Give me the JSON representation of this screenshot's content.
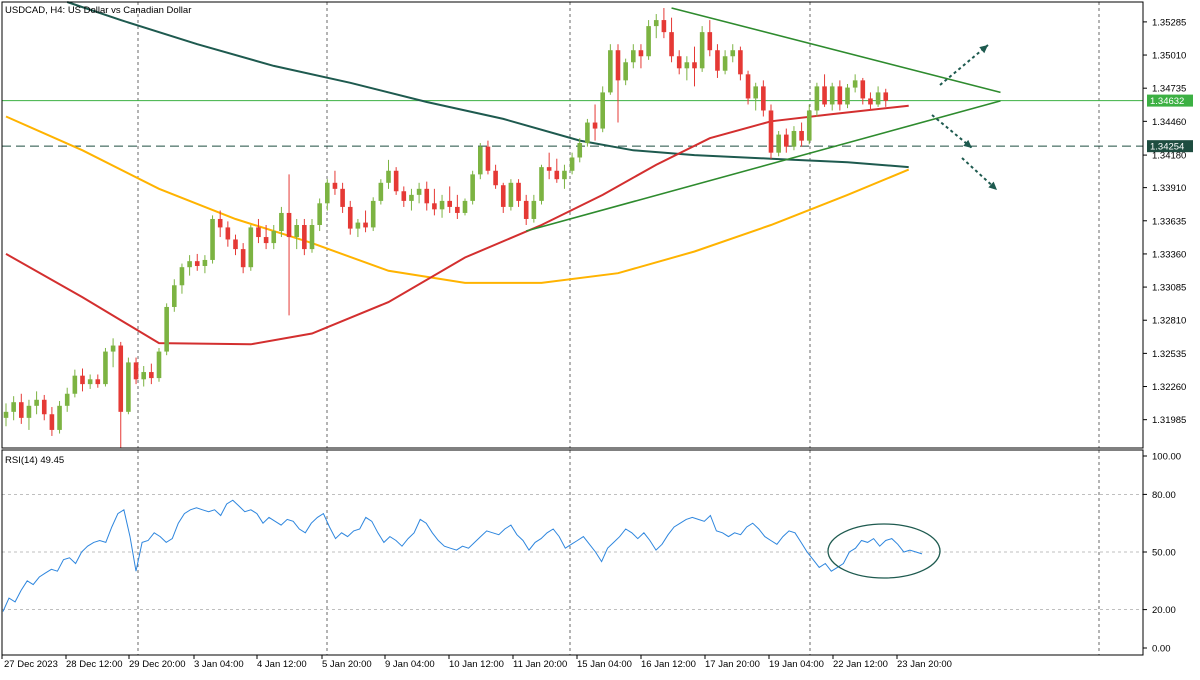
{
  "header": {
    "title": "USDCAD, H4:  US Dollar vs Canadian Dollar"
  },
  "colors": {
    "bull": "#7cb342",
    "bear": "#e53935",
    "ema_fast": "#d32f2f",
    "ema_mid": "#ffb300",
    "ema_slow": "#1e5a4f",
    "trend": "#2e8b2e",
    "price_line": "#3cb043",
    "level_line": "#1e4d40",
    "rsi": "#2e86de",
    "arrow": "#1e5a4f"
  },
  "chart_data": {
    "type": "candlestick",
    "symbol": "USDCAD",
    "timeframe": "H4",
    "ylim": [
      1.3175,
      1.3545
    ],
    "y_ticks": [
      "1.35285",
      "1.35010",
      "1.34735",
      "1.34460",
      "1.34180",
      "1.33910",
      "1.33635",
      "1.33360",
      "1.33085",
      "1.32810",
      "1.32535",
      "1.32260",
      "1.31985"
    ],
    "x_ticks": [
      "27 Dec 2023",
      "28 Dec 12:00",
      "29 Dec 20:00",
      "3 Jan 04:00",
      "4 Jan 12:00",
      "5 Jan 20:00",
      "9 Jan 04:00",
      "10 Jan 12:00",
      "11 Jan 20:00",
      "15 Jan 04:00",
      "16 Jan 12:00",
      "17 Jan 20:00",
      "19 Jan 04:00",
      "22 Jan 12:00",
      "23 Jan 20:00"
    ],
    "current_price": {
      "label": "1.34632",
      "value": 1.34632
    },
    "level": {
      "label": "1.34254",
      "value": 1.34254
    },
    "candles": [
      [
        1.32,
        1.3212,
        1.3193,
        1.3205
      ],
      [
        1.3205,
        1.3218,
        1.3198,
        1.3213
      ],
      [
        1.3213,
        1.322,
        1.3195,
        1.32
      ],
      [
        1.32,
        1.3215,
        1.319,
        1.321
      ],
      [
        1.321,
        1.3222,
        1.3203,
        1.3215
      ],
      [
        1.3215,
        1.3219,
        1.3198,
        1.3203
      ],
      [
        1.3203,
        1.3209,
        1.3185,
        1.319
      ],
      [
        1.319,
        1.3214,
        1.3187,
        1.321
      ],
      [
        1.321,
        1.3225,
        1.3205,
        1.322
      ],
      [
        1.322,
        1.324,
        1.3217,
        1.3235
      ],
      [
        1.3235,
        1.3241,
        1.3222,
        1.3228
      ],
      [
        1.3228,
        1.3236,
        1.3224,
        1.3232
      ],
      [
        1.3232,
        1.3236,
        1.3225,
        1.3228
      ],
      [
        1.3228,
        1.3258,
        1.3226,
        1.3255
      ],
      [
        1.3255,
        1.3266,
        1.3242,
        1.326
      ],
      [
        1.326,
        1.3263,
        1.3175,
        1.3205
      ],
      [
        1.3205,
        1.325,
        1.3203,
        1.3246
      ],
      [
        1.3246,
        1.325,
        1.3228,
        1.3232
      ],
      [
        1.3232,
        1.3243,
        1.3226,
        1.3238
      ],
      [
        1.3238,
        1.3245,
        1.3228,
        1.3233
      ],
      [
        1.3233,
        1.3258,
        1.323,
        1.3255
      ],
      [
        1.3255,
        1.3295,
        1.3252,
        1.3292
      ],
      [
        1.3292,
        1.3315,
        1.3288,
        1.331
      ],
      [
        1.331,
        1.3328,
        1.3303,
        1.3325
      ],
      [
        1.3325,
        1.3335,
        1.3318,
        1.333
      ],
      [
        1.333,
        1.3336,
        1.3322,
        1.3326
      ],
      [
        1.3326,
        1.3335,
        1.332,
        1.3331
      ],
      [
        1.3331,
        1.3368,
        1.3328,
        1.3365
      ],
      [
        1.3365,
        1.3372,
        1.335,
        1.3358
      ],
      [
        1.3358,
        1.3363,
        1.3342,
        1.3348
      ],
      [
        1.3348,
        1.3352,
        1.3335,
        1.334
      ],
      [
        1.334,
        1.3345,
        1.332,
        1.3325
      ],
      [
        1.3325,
        1.336,
        1.3322,
        1.3358
      ],
      [
        1.3358,
        1.3365,
        1.3345,
        1.335
      ],
      [
        1.335,
        1.336,
        1.334,
        1.3345
      ],
      [
        1.3345,
        1.336,
        1.334,
        1.3355
      ],
      [
        1.3355,
        1.3375,
        1.335,
        1.337
      ],
      [
        1.337,
        1.3402,
        1.3285,
        1.335
      ],
      [
        1.335,
        1.3365,
        1.334,
        1.336
      ],
      [
        1.336,
        1.3365,
        1.3335,
        1.334
      ],
      [
        1.334,
        1.3365,
        1.3337,
        1.336
      ],
      [
        1.336,
        1.3382,
        1.3355,
        1.3378
      ],
      [
        1.3378,
        1.3398,
        1.3372,
        1.3395
      ],
      [
        1.3395,
        1.3405,
        1.3385,
        1.339
      ],
      [
        1.339,
        1.3395,
        1.337,
        1.3375
      ],
      [
        1.3375,
        1.338,
        1.3352,
        1.3357
      ],
      [
        1.3357,
        1.3365,
        1.335,
        1.3362
      ],
      [
        1.3362,
        1.3372,
        1.3354,
        1.3358
      ],
      [
        1.3358,
        1.3383,
        1.3355,
        1.338
      ],
      [
        1.338,
        1.3398,
        1.3377,
        1.3395
      ],
      [
        1.3395,
        1.3414,
        1.339,
        1.3405
      ],
      [
        1.3405,
        1.3408,
        1.3385,
        1.3388
      ],
      [
        1.3388,
        1.3392,
        1.3375,
        1.338
      ],
      [
        1.338,
        1.339,
        1.3372,
        1.3385
      ],
      [
        1.3385,
        1.3395,
        1.3378,
        1.339
      ],
      [
        1.339,
        1.3396,
        1.3372,
        1.3378
      ],
      [
        1.3378,
        1.339,
        1.3368,
        1.3373
      ],
      [
        1.3373,
        1.3385,
        1.3366,
        1.338
      ],
      [
        1.338,
        1.3392,
        1.337,
        1.3375
      ],
      [
        1.3375,
        1.3385,
        1.3365,
        1.337
      ],
      [
        1.337,
        1.3382,
        1.3368,
        1.338
      ],
      [
        1.338,
        1.3405,
        1.3377,
        1.3402
      ],
      [
        1.3402,
        1.3428,
        1.3398,
        1.3425
      ],
      [
        1.3425,
        1.343,
        1.3402,
        1.3405
      ],
      [
        1.3405,
        1.341,
        1.339,
        1.3393
      ],
      [
        1.3393,
        1.3395,
        1.337,
        1.3375
      ],
      [
        1.3375,
        1.3398,
        1.3372,
        1.3395
      ],
      [
        1.3395,
        1.3398,
        1.3375,
        1.338
      ],
      [
        1.338,
        1.3385,
        1.336,
        1.3365
      ],
      [
        1.3365,
        1.3385,
        1.3362,
        1.338
      ],
      [
        1.338,
        1.341,
        1.3377,
        1.3408
      ],
      [
        1.3408,
        1.342,
        1.3398,
        1.3405
      ],
      [
        1.3405,
        1.3415,
        1.3395,
        1.3398
      ],
      [
        1.3398,
        1.341,
        1.339,
        1.3405
      ],
      [
        1.3405,
        1.342,
        1.3402,
        1.3416
      ],
      [
        1.3416,
        1.3432,
        1.3412,
        1.3428
      ],
      [
        1.3428,
        1.3448,
        1.3425,
        1.3445
      ],
      [
        1.3445,
        1.346,
        1.343,
        1.344
      ],
      [
        1.344,
        1.3475,
        1.3437,
        1.347
      ],
      [
        1.347,
        1.351,
        1.3468,
        1.3505
      ],
      [
        1.3505,
        1.351,
        1.3445,
        1.348
      ],
      [
        1.348,
        1.3498,
        1.3476,
        1.3495
      ],
      [
        1.3495,
        1.351,
        1.349,
        1.3505
      ],
      [
        1.3505,
        1.351,
        1.349,
        1.35
      ],
      [
        1.35,
        1.353,
        1.3497,
        1.3525
      ],
      [
        1.3525,
        1.3535,
        1.3515,
        1.353
      ],
      [
        1.353,
        1.354,
        1.3515,
        1.352
      ],
      [
        1.352,
        1.3532,
        1.3495,
        1.35
      ],
      [
        1.35,
        1.3505,
        1.3485,
        1.349
      ],
      [
        1.349,
        1.35,
        1.348,
        1.3495
      ],
      [
        1.3495,
        1.3508,
        1.3475,
        1.349
      ],
      [
        1.349,
        1.3525,
        1.3487,
        1.352
      ],
      [
        1.352,
        1.353,
        1.35,
        1.3505
      ],
      [
        1.3505,
        1.351,
        1.3482,
        1.3488
      ],
      [
        1.3488,
        1.3505,
        1.3485,
        1.35
      ],
      [
        1.35,
        1.351,
        1.3495,
        1.3505
      ],
      [
        1.3505,
        1.3508,
        1.348,
        1.3485
      ],
      [
        1.3485,
        1.3488,
        1.346,
        1.3465
      ],
      [
        1.3465,
        1.3478,
        1.3455,
        1.3475
      ],
      [
        1.3475,
        1.348,
        1.345,
        1.3455
      ],
      [
        1.3455,
        1.346,
        1.3415,
        1.342
      ],
      [
        1.342,
        1.3438,
        1.3417,
        1.3435
      ],
      [
        1.3435,
        1.344,
        1.342,
        1.3425
      ],
      [
        1.3425,
        1.3442,
        1.3422,
        1.3438
      ],
      [
        1.3438,
        1.3445,
        1.3425,
        1.343
      ],
      [
        1.343,
        1.346,
        1.3427,
        1.3455
      ],
      [
        1.3455,
        1.3478,
        1.345,
        1.3475
      ],
      [
        1.3475,
        1.3485,
        1.3458,
        1.346
      ],
      [
        1.346,
        1.3478,
        1.3455,
        1.3475
      ],
      [
        1.3475,
        1.348,
        1.3455,
        1.346
      ],
      [
        1.346,
        1.3477,
        1.3457,
        1.3474
      ],
      [
        1.3474,
        1.3485,
        1.347,
        1.348
      ],
      [
        1.348,
        1.3482,
        1.346,
        1.3465
      ],
      [
        1.3465,
        1.347,
        1.3455,
        1.346
      ],
      [
        1.346,
        1.3475,
        1.3458,
        1.347
      ],
      [
        1.347,
        1.3473,
        1.3458,
        1.3463
      ]
    ],
    "ema_fast": [
      [
        0,
        1.3336
      ],
      [
        10,
        1.33
      ],
      [
        20,
        1.3262
      ],
      [
        32,
        1.3261
      ],
      [
        40,
        1.327
      ],
      [
        50,
        1.3296
      ],
      [
        60,
        1.3333
      ],
      [
        70,
        1.336
      ],
      [
        78,
        1.3385
      ],
      [
        85,
        1.341
      ],
      [
        92,
        1.3432
      ],
      [
        100,
        1.3446
      ],
      [
        108,
        1.3452
      ],
      [
        118,
        1.3459
      ]
    ],
    "ema_mid": [
      [
        0,
        1.345
      ],
      [
        10,
        1.3422
      ],
      [
        20,
        1.339
      ],
      [
        30,
        1.3365
      ],
      [
        40,
        1.3345
      ],
      [
        50,
        1.3322
      ],
      [
        60,
        1.3312
      ],
      [
        70,
        1.3312
      ],
      [
        80,
        1.332
      ],
      [
        90,
        1.3338
      ],
      [
        100,
        1.336
      ],
      [
        110,
        1.3385
      ],
      [
        118,
        1.3406
      ]
    ],
    "ema_slow": [
      [
        8,
        1.3545
      ],
      [
        15,
        1.353
      ],
      [
        25,
        1.351
      ],
      [
        35,
        1.3492
      ],
      [
        45,
        1.3478
      ],
      [
        55,
        1.3462
      ],
      [
        65,
        1.3448
      ],
      [
        75,
        1.343
      ],
      [
        82,
        1.3422
      ],
      [
        90,
        1.3418
      ],
      [
        100,
        1.3415
      ],
      [
        110,
        1.3412
      ],
      [
        118,
        1.3408
      ]
    ],
    "trendlines": [
      {
        "from": [
          87,
          1.354
        ],
        "to": [
          130,
          1.347
        ]
      },
      {
        "from": [
          68,
          1.3355
        ],
        "to": [
          130,
          1.3463
        ]
      }
    ],
    "rsi": {
      "label": "RSI(14) 49.45",
      "ylim": [
        0,
        100
      ],
      "y_ticks": [
        "100.00",
        "80.00",
        "50.00",
        "20.00",
        "0.00"
      ],
      "levels": [
        80,
        50,
        20
      ],
      "values": [
        19,
        26,
        24,
        30,
        35,
        33,
        37,
        39,
        41,
        40,
        46,
        47,
        44,
        50,
        53,
        55,
        56,
        55,
        63,
        70,
        72,
        58,
        40,
        55,
        56,
        60,
        58,
        55,
        57,
        65,
        70,
        72,
        73,
        72,
        71,
        72,
        69,
        75,
        77,
        74,
        71,
        72,
        70,
        65,
        68,
        66,
        64,
        67,
        66,
        62,
        60,
        65,
        68,
        70,
        63,
        57,
        60,
        58,
        61,
        62,
        68,
        66,
        60,
        55,
        58,
        56,
        53,
        57,
        60,
        67,
        65,
        60,
        56,
        53,
        52,
        51,
        53,
        52,
        55,
        58,
        61,
        60,
        59,
        62,
        64,
        59,
        56,
        51,
        55,
        57,
        60,
        62,
        58,
        52,
        54,
        56,
        58,
        54,
        50,
        45,
        52,
        55,
        58,
        62,
        60,
        57,
        60,
        56,
        51,
        54,
        59,
        63,
        65,
        67,
        68,
        67,
        66,
        69,
        61,
        60,
        58,
        60,
        59,
        63,
        65,
        62,
        58,
        56,
        54,
        58,
        61,
        60,
        55,
        50,
        46,
        42,
        44,
        40,
        42,
        44,
        50,
        52,
        56,
        55,
        57,
        53,
        56,
        57,
        54,
        50,
        51,
        50,
        49
      ]
    }
  }
}
